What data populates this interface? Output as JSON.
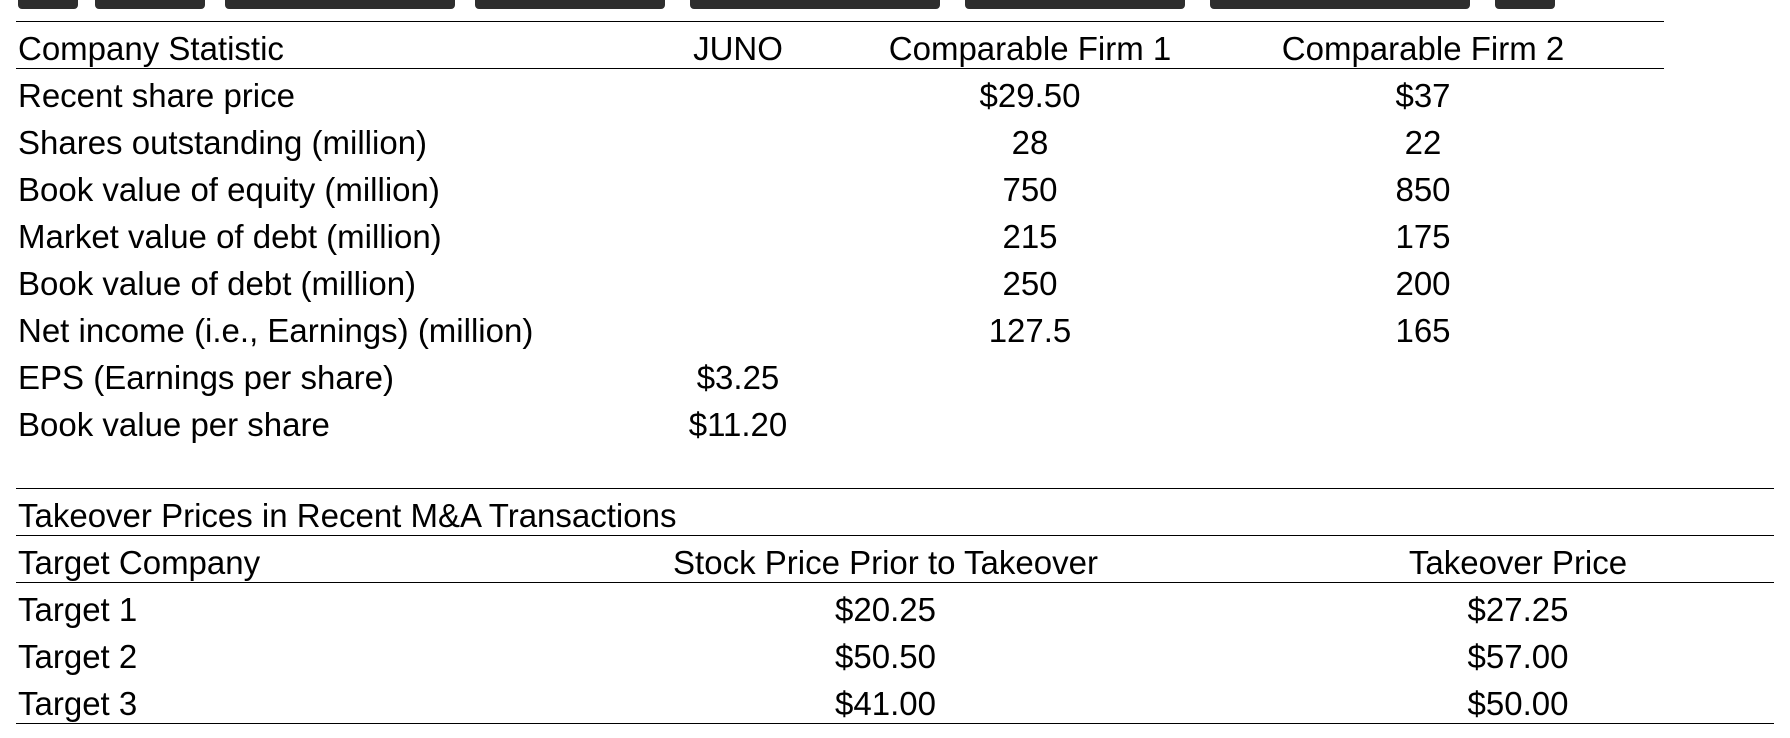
{
  "company_table": {
    "headers": [
      "Company Statistic",
      "JUNO",
      "Comparable Firm 1",
      "Comparable Firm 2"
    ],
    "rows": [
      [
        "Recent share price",
        "",
        "$29.50",
        "$37"
      ],
      [
        "Shares outstanding (million)",
        "",
        "28",
        "22"
      ],
      [
        "Book value of equity (million)",
        "",
        "750",
        "850"
      ],
      [
        "Market value of debt (million)",
        "",
        "215",
        "175"
      ],
      [
        "Book value of debt (million)",
        "",
        "250",
        "200"
      ],
      [
        "Net income (i.e., Earnings) (million)",
        "",
        "127.5",
        "165"
      ],
      [
        "EPS (Earnings per share)",
        "$3.25",
        "",
        ""
      ],
      [
        "Book value per share",
        "$11.20",
        "",
        ""
      ]
    ]
  },
  "takeover_table": {
    "title": "Takeover Prices in Recent M&A Transactions",
    "headers": [
      "Target Company",
      "Stock Price Prior to Takeover",
      "Takeover Price"
    ],
    "rows": [
      [
        "Target 1",
        "$20.25",
        "$27.25"
      ],
      [
        "Target 2",
        "$50.50",
        "$57.00"
      ],
      [
        "Target 3",
        "$41.00",
        "$50.00"
      ]
    ]
  }
}
